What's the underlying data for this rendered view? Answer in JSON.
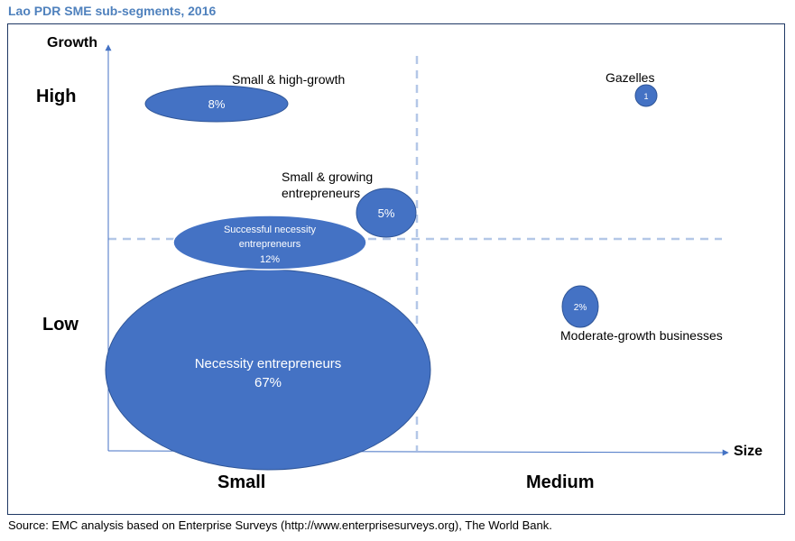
{
  "title": "Lao PDR SME sub-segments, 2016",
  "source": "Source: EMC analysis based on Enterprise Surveys (http://www.enterprisesurveys.org), The World Bank.",
  "axes": {
    "y_label": "Growth",
    "x_label": "Size",
    "y_high": "High",
    "y_low": "Low",
    "x_small": "Small",
    "x_medium": "Medium"
  },
  "colors": {
    "bubble": "#4472c4",
    "bubble_border": "#2f5597",
    "axis": "#4472c4",
    "divider": "#b4c7e7",
    "title": "#4f81bd"
  },
  "segments": [
    {
      "id": "small-high-growth",
      "label": "Small & high-growth",
      "inner_label": "8%"
    },
    {
      "id": "small-growing",
      "label_lines": [
        "Small & growing",
        "entrepreneurs"
      ],
      "inner_label": "5%"
    },
    {
      "id": "successful-necessity",
      "inner_lines": [
        "Successful necessity",
        "entrepreneurs",
        "12%"
      ]
    },
    {
      "id": "necessity",
      "inner_lines": [
        "Necessity entrepreneurs",
        "67%"
      ]
    },
    {
      "id": "gazelles",
      "label": "Gazelles",
      "inner_label": "1"
    },
    {
      "id": "moderate-growth",
      "label": "Moderate-growth businesses",
      "inner_label": "2%"
    }
  ]
}
